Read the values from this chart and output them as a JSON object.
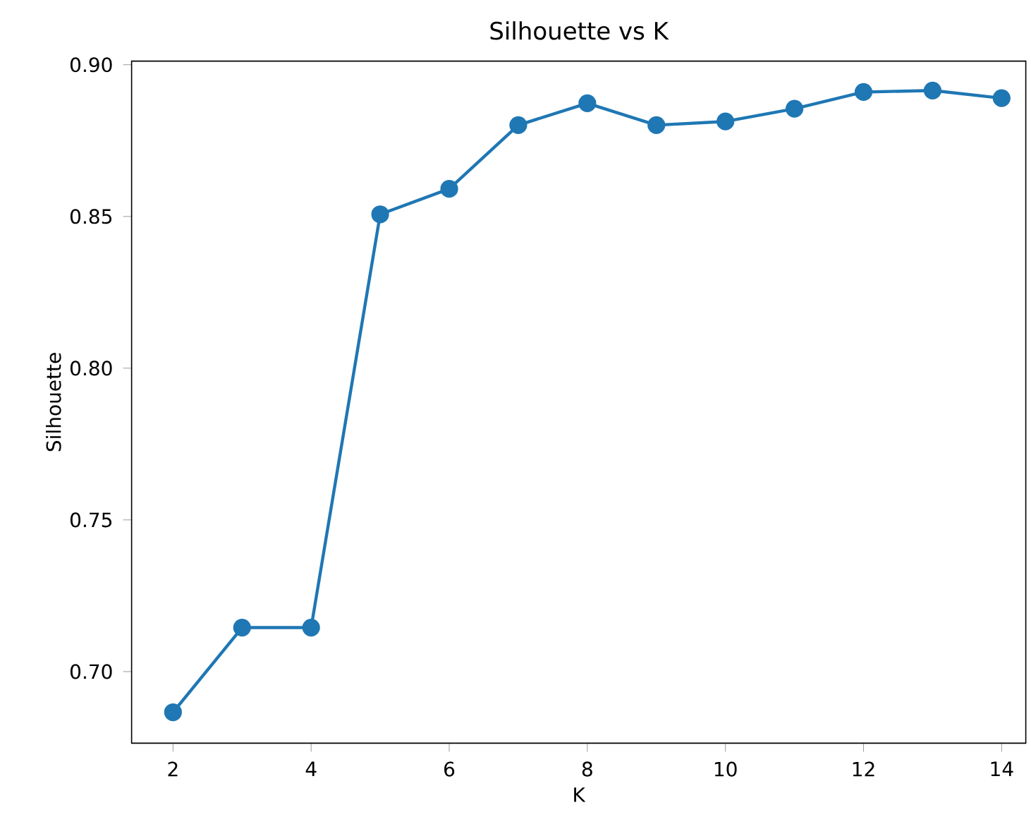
{
  "chart_data": {
    "type": "line",
    "title": "Silhouette vs K",
    "xlabel": "K",
    "ylabel": "Silhouette",
    "x": [
      2,
      3,
      4,
      5,
      6,
      7,
      8,
      9,
      10,
      11,
      12,
      13,
      14
    ],
    "series": [
      {
        "color": "#1f77b4",
        "values": [
          0.6866,
          0.7145,
          0.7145,
          0.8507,
          0.8591,
          0.8801,
          0.8873,
          0.8801,
          0.8813,
          0.8855,
          0.891,
          0.8915,
          0.889
        ]
      }
    ],
    "xlim": [
      1.4,
      14.35
    ],
    "ylim": [
      0.6764,
      0.9012
    ],
    "xticks": [
      2,
      4,
      6,
      8,
      10,
      12,
      14
    ],
    "yticks": [
      {
        "value": 0.7,
        "label": "0.70"
      },
      {
        "value": 0.75,
        "label": "0.75"
      },
      {
        "value": 0.8,
        "label": "0.80"
      },
      {
        "value": 0.85,
        "label": "0.85"
      },
      {
        "value": 0.9,
        "label": "0.90"
      }
    ],
    "marker": "circle",
    "line_style": "solid"
  }
}
